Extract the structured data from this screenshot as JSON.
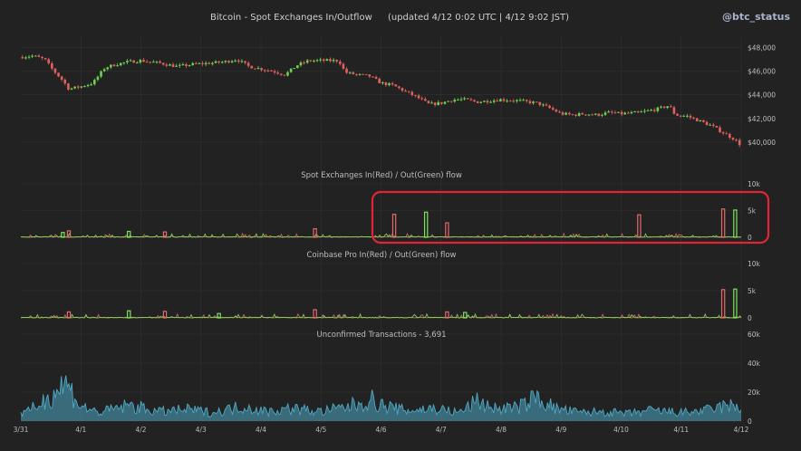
{
  "header": {
    "title": "Bitcoin - Spot Exchanges In/Outflow",
    "updated": "(updated 4/12 0:02 UTC  |  4/12 9:02 JST)",
    "brand": "@btc_status"
  },
  "colors": {
    "background": "#222222",
    "up": "#6fd14f",
    "down": "#e0605e",
    "inflow": "#e26a6a",
    "outflow": "#7ee25a",
    "area": "#4fa8c4",
    "grid": "#333333",
    "highlight": "#e02636"
  },
  "x_labels": [
    "3/31",
    "4/1",
    "4/2",
    "4/3",
    "4/4",
    "4/5",
    "4/6",
    "4/7",
    "4/8",
    "4/9",
    "4/10",
    "4/11",
    "4/12"
  ],
  "chart_data": [
    {
      "type": "candlestick",
      "title": "",
      "ylim": [
        39000,
        48500
      ],
      "yticks": [
        "$40,000",
        "$42,000",
        "$44,000",
        "$46,000",
        "$48,000"
      ],
      "ytick_values": [
        40000,
        42000,
        44000,
        46000,
        48000
      ],
      "close_path": [
        [
          0,
          47200
        ],
        [
          0.2,
          47300
        ],
        [
          0.4,
          47000
        ],
        [
          0.5,
          46300
        ],
        [
          0.7,
          45200
        ],
        [
          0.8,
          44500
        ],
        [
          1.0,
          44700
        ],
        [
          1.2,
          45000
        ],
        [
          1.4,
          46300
        ],
        [
          1.6,
          46600
        ],
        [
          1.8,
          46800
        ],
        [
          2.0,
          46900
        ],
        [
          2.3,
          46700
        ],
        [
          2.6,
          46400
        ],
        [
          2.9,
          46600
        ],
        [
          3.2,
          46700
        ],
        [
          3.4,
          46800
        ],
        [
          3.6,
          47000
        ],
        [
          3.8,
          46400
        ],
        [
          4.0,
          46200
        ],
        [
          4.2,
          46000
        ],
        [
          4.4,
          45700
        ],
        [
          4.6,
          46500
        ],
        [
          4.8,
          46900
        ],
        [
          5.0,
          46900
        ],
        [
          5.3,
          46900
        ],
        [
          5.4,
          45900
        ],
        [
          5.6,
          45700
        ],
        [
          5.8,
          45600
        ],
        [
          6.0,
          45000
        ],
        [
          6.2,
          44800
        ],
        [
          6.4,
          44300
        ],
        [
          6.6,
          43800
        ],
        [
          6.8,
          43200
        ],
        [
          7.0,
          43300
        ],
        [
          7.2,
          43600
        ],
        [
          7.4,
          43600
        ],
        [
          7.6,
          43400
        ],
        [
          7.8,
          43500
        ],
        [
          8.0,
          43600
        ],
        [
          8.3,
          43500
        ],
        [
          8.6,
          43300
        ],
        [
          8.8,
          42900
        ],
        [
          9.0,
          42400
        ],
        [
          9.2,
          42300
        ],
        [
          9.4,
          42400
        ],
        [
          9.6,
          42300
        ],
        [
          9.8,
          42500
        ],
        [
          10.0,
          42400
        ],
        [
          10.3,
          42500
        ],
        [
          10.6,
          42800
        ],
        [
          10.8,
          43100
        ],
        [
          10.9,
          42300
        ],
        [
          11.1,
          42200
        ],
        [
          11.3,
          41800
        ],
        [
          11.5,
          41400
        ],
        [
          11.7,
          40800
        ],
        [
          11.9,
          40200
        ],
        [
          12.0,
          39700
        ]
      ]
    },
    {
      "type": "bar",
      "title": "Spot Exchanges  In(Red) / Out(Green) flow",
      "ylim": [
        0,
        10000
      ],
      "yticks": [
        "10k",
        "5k",
        "0"
      ],
      "ytick_values": [
        10000,
        5000,
        0
      ],
      "inflow_spikes": [
        [
          0.8,
          1200
        ],
        [
          2.4,
          1000
        ],
        [
          4.9,
          1600
        ],
        [
          6.22,
          4300
        ],
        [
          7.1,
          2700
        ],
        [
          10.3,
          4200
        ],
        [
          11.7,
          5300
        ]
      ],
      "outflow_spikes": [
        [
          0.7,
          900
        ],
        [
          1.8,
          1100
        ],
        [
          6.75,
          4700
        ],
        [
          11.9,
          5100
        ]
      ]
    },
    {
      "type": "bar",
      "title": "Coinbase Pro  In(Red) / Out(Green) flow",
      "ylim": [
        0,
        10000
      ],
      "yticks": [
        "10k",
        "5k",
        "0"
      ],
      "ytick_values": [
        10000,
        5000,
        0
      ],
      "inflow_spikes": [
        [
          0.8,
          1100
        ],
        [
          2.4,
          1200
        ],
        [
          4.9,
          1500
        ],
        [
          7.1,
          1100
        ],
        [
          11.7,
          5200
        ]
      ],
      "outflow_spikes": [
        [
          1.8,
          1300
        ],
        [
          3.3,
          800
        ],
        [
          7.4,
          1000
        ],
        [
          11.9,
          5300
        ]
      ]
    },
    {
      "type": "area",
      "title": "Unconfirmed Transactions  -  3,691",
      "ylim": [
        0,
        60000
      ],
      "yticks": [
        "60k",
        "40k",
        "20k",
        "0"
      ],
      "ytick_values": [
        60000,
        40000,
        20000,
        0
      ],
      "peaks": [
        [
          0.1,
          8000
        ],
        [
          0.4,
          20000
        ],
        [
          0.75,
          36000
        ],
        [
          1.0,
          14000
        ],
        [
          1.3,
          8000
        ],
        [
          1.8,
          15000
        ],
        [
          2.3,
          9000
        ],
        [
          2.8,
          11000
        ],
        [
          3.2,
          8000
        ],
        [
          3.7,
          14000
        ],
        [
          4.1,
          9000
        ],
        [
          4.5,
          12000
        ],
        [
          5.0,
          9000
        ],
        [
          5.4,
          13000
        ],
        [
          5.85,
          20000
        ],
        [
          6.0,
          15000
        ],
        [
          6.4,
          10000
        ],
        [
          6.9,
          12000
        ],
        [
          7.3,
          8000
        ],
        [
          7.6,
          19000
        ],
        [
          7.9,
          12000
        ],
        [
          8.3,
          13000
        ],
        [
          8.6,
          23000
        ],
        [
          8.9,
          12000
        ],
        [
          9.3,
          8000
        ],
        [
          9.7,
          9000
        ],
        [
          10.1,
          7000
        ],
        [
          10.5,
          10000
        ],
        [
          11.0,
          8000
        ],
        [
          11.4,
          10000
        ],
        [
          11.8,
          15000
        ],
        [
          12.0,
          10000
        ]
      ]
    }
  ]
}
